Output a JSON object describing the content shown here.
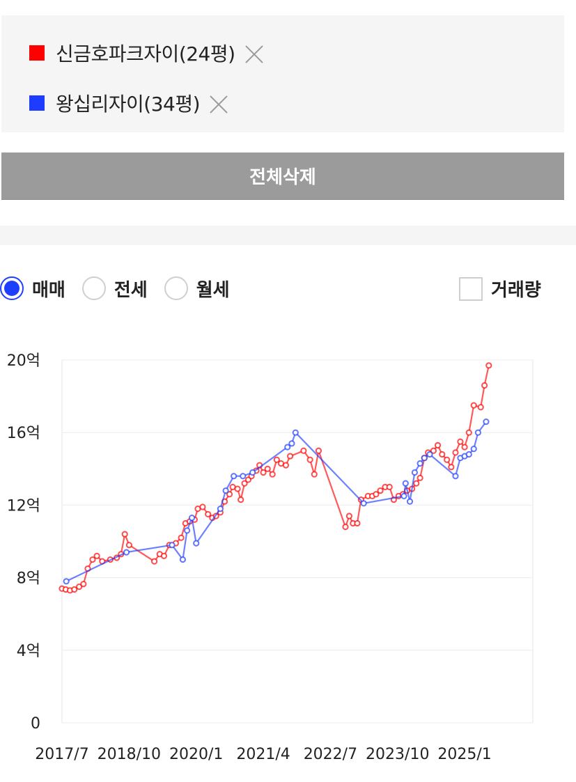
{
  "legend": {
    "items": [
      {
        "label": "신금호파크자이(24평)",
        "color": "#ff0000"
      },
      {
        "label": "왕십리자이(34평)",
        "color": "#1e3cff"
      }
    ]
  },
  "clear_button": {
    "label": "전체삭제"
  },
  "trade_types": {
    "options": [
      {
        "label": "매매",
        "checked": true
      },
      {
        "label": "전세",
        "checked": false
      },
      {
        "label": "월세",
        "checked": false
      }
    ]
  },
  "volume_toggle": {
    "label": "거래량",
    "checked": false
  },
  "chart_data": {
    "type": "line",
    "title": "",
    "xlabel": "",
    "ylabel": "",
    "ylim": [
      0,
      20
    ],
    "xlim": [
      2017.5,
      2026.27
    ],
    "y_ticks": [
      {
        "value": 0,
        "label": "0"
      },
      {
        "value": 4,
        "label": "4억"
      },
      {
        "value": 8,
        "label": "8억"
      },
      {
        "value": 12,
        "label": "12억"
      },
      {
        "value": 16,
        "label": "16억"
      },
      {
        "value": 20,
        "label": "20억"
      }
    ],
    "x_ticks": [
      {
        "value": 2017.5,
        "label": "2017/7"
      },
      {
        "value": 2018.75,
        "label": "2018/10"
      },
      {
        "value": 2020.0,
        "label": "2020/1"
      },
      {
        "value": 2021.25,
        "label": "2021/4"
      },
      {
        "value": 2022.5,
        "label": "2022/7"
      },
      {
        "value": 2023.75,
        "label": "2023/10"
      },
      {
        "value": 2025.0,
        "label": "2025/1"
      }
    ],
    "grid": true,
    "series": [
      {
        "name": "신금호파크자이(24평)",
        "color": "#ff0000",
        "points": [
          [
            2017.5,
            7.4
          ],
          [
            2017.57,
            7.35
          ],
          [
            2017.65,
            7.3
          ],
          [
            2017.73,
            7.35
          ],
          [
            2017.82,
            7.5
          ],
          [
            2017.9,
            7.65
          ],
          [
            2017.98,
            8.5
          ],
          [
            2018.07,
            9.0
          ],
          [
            2018.15,
            9.2
          ],
          [
            2018.25,
            8.9
          ],
          [
            2018.4,
            9.0
          ],
          [
            2018.52,
            9.1
          ],
          [
            2018.6,
            9.3
          ],
          [
            2018.67,
            10.4
          ],
          [
            2018.75,
            9.8
          ],
          [
            2019.22,
            8.9
          ],
          [
            2019.32,
            9.3
          ],
          [
            2019.4,
            9.2
          ],
          [
            2019.5,
            9.8
          ],
          [
            2019.62,
            9.9
          ],
          [
            2019.72,
            10.2
          ],
          [
            2019.8,
            11.0
          ],
          [
            2019.88,
            11.1
          ],
          [
            2019.97,
            11.2
          ],
          [
            2020.03,
            11.8
          ],
          [
            2020.12,
            11.9
          ],
          [
            2020.22,
            11.5
          ],
          [
            2020.3,
            11.3
          ],
          [
            2020.37,
            11.4
          ],
          [
            2020.45,
            11.6
          ],
          [
            2020.53,
            12.2
          ],
          [
            2020.62,
            12.6
          ],
          [
            2020.68,
            13.0
          ],
          [
            2020.77,
            12.9
          ],
          [
            2020.83,
            12.3
          ],
          [
            2020.9,
            13.2
          ],
          [
            2020.97,
            13.4
          ],
          [
            2021.03,
            13.6
          ],
          [
            2021.12,
            13.9
          ],
          [
            2021.18,
            14.2
          ],
          [
            2021.25,
            13.8
          ],
          [
            2021.33,
            14.0
          ],
          [
            2021.42,
            13.7
          ],
          [
            2021.5,
            14.5
          ],
          [
            2021.58,
            14.3
          ],
          [
            2021.67,
            14.2
          ],
          [
            2021.75,
            14.7
          ],
          [
            2022.0,
            15.0
          ],
          [
            2022.12,
            14.5
          ],
          [
            2022.2,
            13.7
          ],
          [
            2022.28,
            15.0
          ],
          [
            2022.78,
            10.8
          ],
          [
            2022.85,
            11.4
          ],
          [
            2022.92,
            11.0
          ],
          [
            2023.0,
            11.0
          ],
          [
            2023.07,
            12.3
          ],
          [
            2023.2,
            12.5
          ],
          [
            2023.28,
            12.5
          ],
          [
            2023.35,
            12.6
          ],
          [
            2023.43,
            12.8
          ],
          [
            2023.52,
            13.0
          ],
          [
            2023.6,
            13.0
          ],
          [
            2023.68,
            12.3
          ],
          [
            2023.77,
            12.5
          ],
          [
            2023.85,
            12.6
          ],
          [
            2023.93,
            12.8
          ],
          [
            2024.02,
            12.9
          ],
          [
            2024.1,
            13.2
          ],
          [
            2024.17,
            13.5
          ],
          [
            2024.25,
            14.6
          ],
          [
            2024.32,
            14.9
          ],
          [
            2024.42,
            15.0
          ],
          [
            2024.5,
            15.3
          ],
          [
            2024.58,
            14.8
          ],
          [
            2024.67,
            14.5
          ],
          [
            2024.75,
            14.1
          ],
          [
            2024.83,
            14.9
          ],
          [
            2024.92,
            15.5
          ],
          [
            2025.0,
            15.2
          ],
          [
            2025.08,
            16.0
          ],
          [
            2025.17,
            17.5
          ],
          [
            2025.3,
            17.4
          ],
          [
            2025.37,
            18.6
          ],
          [
            2025.45,
            19.7
          ]
        ]
      },
      {
        "name": "왕십리자이(34평)",
        "color": "#1e3cff",
        "points": [
          [
            2017.58,
            7.8
          ],
          [
            2018.7,
            9.4
          ],
          [
            2019.55,
            9.8
          ],
          [
            2019.75,
            9.0
          ],
          [
            2019.83,
            10.6
          ],
          [
            2019.92,
            11.3
          ],
          [
            2020.0,
            9.9
          ],
          [
            2020.45,
            11.8
          ],
          [
            2020.55,
            12.8
          ],
          [
            2020.7,
            13.6
          ],
          [
            2020.87,
            13.6
          ],
          [
            2021.05,
            13.8
          ],
          [
            2021.7,
            15.2
          ],
          [
            2021.78,
            15.4
          ],
          [
            2021.85,
            16.0
          ],
          [
            2023.12,
            12.1
          ],
          [
            2023.87,
            12.5
          ],
          [
            2023.9,
            13.2
          ],
          [
            2023.98,
            12.2
          ],
          [
            2024.07,
            13.8
          ],
          [
            2024.17,
            14.3
          ],
          [
            2024.25,
            14.6
          ],
          [
            2024.35,
            14.8
          ],
          [
            2024.83,
            13.6
          ],
          [
            2024.92,
            14.6
          ],
          [
            2025.0,
            14.7
          ],
          [
            2025.08,
            14.8
          ],
          [
            2025.17,
            15.1
          ],
          [
            2025.25,
            16.0
          ],
          [
            2025.4,
            16.6
          ]
        ]
      }
    ]
  }
}
